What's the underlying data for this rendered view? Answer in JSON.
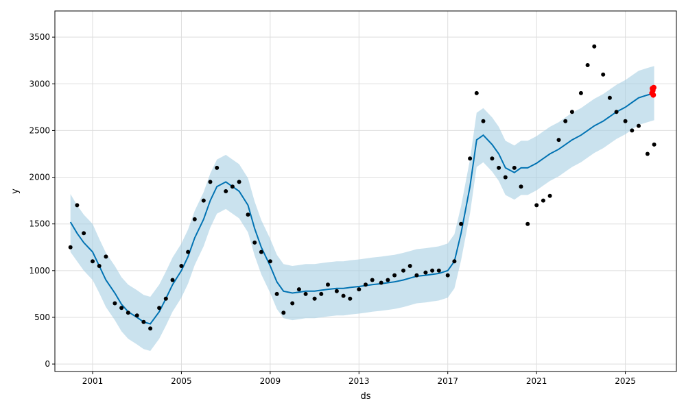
{
  "chart_data": {
    "type": "scatter",
    "title": "",
    "xlabel": "ds",
    "ylabel": "y",
    "xlim": [
      1999.3,
      2027.3
    ],
    "ylim": [
      -80,
      3780
    ],
    "x_ticks": [
      2001,
      2005,
      2009,
      2013,
      2017,
      2021,
      2025
    ],
    "x_tick_labels": [
      "2001",
      "2005",
      "2009",
      "2013",
      "2017",
      "2021",
      "2025"
    ],
    "y_ticks": [
      0,
      500,
      1000,
      1500,
      2000,
      2500,
      3000,
      3500
    ],
    "y_tick_labels": [
      "0",
      "500",
      "1000",
      "1500",
      "2000",
      "2500",
      "3000",
      "3500"
    ],
    "grid": true,
    "colors": {
      "observed": "#000000",
      "forecast": "#0072B2",
      "interval": "#a6cee3",
      "highlight": "#ff0000",
      "grid": "#dddddd"
    },
    "series": [
      {
        "kind": "observed",
        "x": [
          2000.0,
          2000.3,
          2000.6,
          2001.0,
          2001.3,
          2001.6,
          2002.0,
          2002.3,
          2002.6,
          2003.0,
          2003.3,
          2003.6,
          2004.0,
          2004.3,
          2004.6,
          2005.0,
          2005.3,
          2005.6,
          2006.0,
          2006.3,
          2006.6,
          2007.0,
          2007.3,
          2007.6,
          2008.0,
          2008.3,
          2008.6,
          2009.0,
          2009.3,
          2009.6,
          2010.0,
          2010.3,
          2010.6,
          2011.0,
          2011.3,
          2011.6,
          2012.0,
          2012.3,
          2012.6,
          2013.0,
          2013.3,
          2013.6,
          2014.0,
          2014.3,
          2014.6,
          2015.0,
          2015.3,
          2015.6,
          2016.0,
          2016.3,
          2016.6,
          2017.0,
          2017.3,
          2017.6,
          2018.0,
          2018.3,
          2018.6,
          2019.0,
          2019.3,
          2019.6,
          2020.0,
          2020.3,
          2020.6,
          2021.0,
          2021.3,
          2021.6,
          2022.0,
          2022.3,
          2022.6,
          2023.0,
          2023.3,
          2023.6,
          2024.0,
          2024.3,
          2024.6,
          2025.0,
          2025.3,
          2025.6,
          2026.0,
          2026.3
        ],
        "y": [
          1250,
          1700,
          1400,
          1100,
          1050,
          1150,
          650,
          600,
          550,
          520,
          450,
          380,
          600,
          700,
          900,
          1050,
          1200,
          1550,
          1750,
          1950,
          2100,
          1850,
          1900,
          1950,
          1600,
          1300,
          1200,
          1100,
          750,
          550,
          650,
          800,
          750,
          700,
          750,
          850,
          780,
          730,
          700,
          800,
          850,
          900,
          870,
          900,
          950,
          1000,
          1050,
          950,
          980,
          1000,
          1000,
          950,
          1100,
          1500,
          2200,
          2900,
          2600,
          2200,
          2100,
          2000,
          2100,
          1900,
          1500,
          1700,
          1750,
          1800,
          2400,
          2600,
          2700,
          2900,
          3200,
          3400,
          3100,
          2850,
          2700,
          2600,
          2500,
          2550,
          2250,
          2350
        ]
      },
      {
        "kind": "forecast",
        "x": [
          2000.0,
          2000.3,
          2000.6,
          2001.0,
          2001.3,
          2001.6,
          2002.0,
          2002.3,
          2002.6,
          2003.0,
          2003.3,
          2003.6,
          2004.0,
          2004.3,
          2004.6,
          2005.0,
          2005.3,
          2005.6,
          2006.0,
          2006.3,
          2006.6,
          2007.0,
          2007.3,
          2007.6,
          2008.0,
          2008.3,
          2008.6,
          2009.0,
          2009.3,
          2009.6,
          2010.0,
          2010.3,
          2010.6,
          2011.0,
          2011.3,
          2011.6,
          2012.0,
          2012.3,
          2012.6,
          2013.0,
          2013.3,
          2013.6,
          2014.0,
          2014.3,
          2014.6,
          2015.0,
          2015.3,
          2015.6,
          2016.0,
          2016.3,
          2016.6,
          2017.0,
          2017.3,
          2017.6,
          2018.0,
          2018.3,
          2018.6,
          2019.0,
          2019.3,
          2019.6,
          2020.0,
          2020.3,
          2020.6,
          2021.0,
          2021.3,
          2021.6,
          2022.0,
          2022.3,
          2022.6,
          2023.0,
          2023.3,
          2023.6,
          2024.0,
          2024.3,
          2024.6,
          2025.0,
          2025.3,
          2025.6,
          2026.0,
          2026.3
        ],
        "y": [
          1520,
          1400,
          1300,
          1200,
          1050,
          900,
          760,
          640,
          560,
          500,
          450,
          430,
          560,
          700,
          850,
          1000,
          1150,
          1350,
          1550,
          1750,
          1900,
          1950,
          1900,
          1850,
          1700,
          1450,
          1250,
          1050,
          880,
          780,
          760,
          770,
          780,
          780,
          790,
          800,
          810,
          810,
          820,
          830,
          840,
          850,
          860,
          870,
          880,
          900,
          920,
          940,
          950,
          960,
          970,
          1000,
          1100,
          1400,
          1900,
          2400,
          2450,
          2350,
          2250,
          2100,
          2050,
          2100,
          2100,
          2150,
          2200,
          2250,
          2300,
          2350,
          2400,
          2450,
          2500,
          2550,
          2600,
          2650,
          2700,
          2750,
          2800,
          2850,
          2880,
          2900
        ]
      },
      {
        "kind": "interval",
        "x": [
          2000.0,
          2000.3,
          2000.6,
          2001.0,
          2001.3,
          2001.6,
          2002.0,
          2002.3,
          2002.6,
          2003.0,
          2003.3,
          2003.6,
          2004.0,
          2004.3,
          2004.6,
          2005.0,
          2005.3,
          2005.6,
          2006.0,
          2006.3,
          2006.6,
          2007.0,
          2007.3,
          2007.6,
          2008.0,
          2008.3,
          2008.6,
          2009.0,
          2009.3,
          2009.6,
          2010.0,
          2010.3,
          2010.6,
          2011.0,
          2011.3,
          2011.6,
          2012.0,
          2012.3,
          2012.6,
          2013.0,
          2013.3,
          2013.6,
          2014.0,
          2014.3,
          2014.6,
          2015.0,
          2015.3,
          2015.6,
          2016.0,
          2016.3,
          2016.6,
          2017.0,
          2017.3,
          2017.6,
          2018.0,
          2018.3,
          2018.6,
          2019.0,
          2019.3,
          2019.6,
          2020.0,
          2020.3,
          2020.6,
          2021.0,
          2021.3,
          2021.6,
          2022.0,
          2022.3,
          2022.6,
          2023.0,
          2023.3,
          2023.6,
          2024.0,
          2024.3,
          2024.6,
          2025.0,
          2025.3,
          2025.6,
          2026.0,
          2026.3
        ],
        "lower": [
          1200,
          1100,
          1000,
          900,
          760,
          610,
          470,
          350,
          270,
          210,
          160,
          140,
          270,
          410,
          560,
          710,
          860,
          1060,
          1260,
          1460,
          1610,
          1660,
          1610,
          1560,
          1410,
          1160,
          960,
          760,
          590,
          490,
          470,
          480,
          490,
          490,
          500,
          510,
          520,
          520,
          530,
          540,
          550,
          560,
          570,
          580,
          590,
          610,
          630,
          650,
          660,
          670,
          680,
          710,
          810,
          1110,
          1610,
          2110,
          2160,
          2060,
          1960,
          1810,
          1760,
          1810,
          1810,
          1860,
          1910,
          1960,
          2010,
          2060,
          2110,
          2160,
          2210,
          2260,
          2310,
          2360,
          2410,
          2460,
          2510,
          2560,
          2590,
          2610
        ],
        "upper": [
          1820,
          1700,
          1600,
          1500,
          1340,
          1190,
          1050,
          930,
          850,
          790,
          740,
          720,
          850,
          990,
          1140,
          1290,
          1440,
          1640,
          1840,
          2040,
          2190,
          2240,
          2190,
          2140,
          1990,
          1740,
          1540,
          1340,
          1170,
          1070,
          1050,
          1060,
          1070,
          1070,
          1080,
          1090,
          1100,
          1100,
          1110,
          1120,
          1130,
          1140,
          1150,
          1160,
          1170,
          1190,
          1210,
          1230,
          1240,
          1250,
          1260,
          1290,
          1390,
          1690,
          2190,
          2690,
          2740,
          2640,
          2540,
          2390,
          2340,
          2390,
          2390,
          2440,
          2490,
          2540,
          2590,
          2640,
          2690,
          2740,
          2790,
          2840,
          2890,
          2940,
          2990,
          3040,
          3090,
          3140,
          3170,
          3190
        ]
      },
      {
        "kind": "highlight",
        "x": [
          2026.2,
          2026.22,
          2026.24,
          2026.26,
          2026.28
        ],
        "y": [
          2900,
          2950,
          2930,
          2880,
          2960
        ]
      }
    ]
  }
}
